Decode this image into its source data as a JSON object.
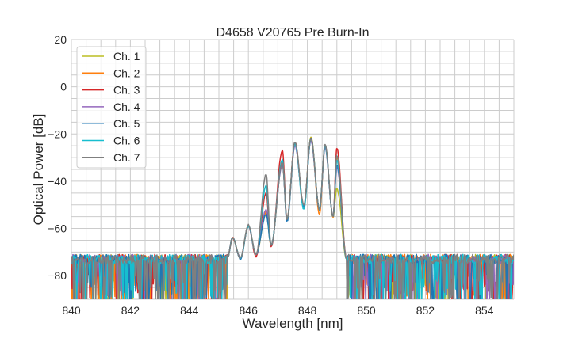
{
  "chart_data": {
    "type": "line",
    "title": "D4658 V20765 Pre Burn-In",
    "xlabel": "Wavelength [nm]",
    "ylabel": "Optical Power [dB]",
    "xlim": [
      840,
      855
    ],
    "ylim": [
      -90,
      20
    ],
    "xticks": [
      840,
      842,
      844,
      846,
      848,
      850,
      852,
      854
    ],
    "yticks": [
      -80,
      -60,
      -40,
      -20,
      0,
      20
    ],
    "grid": true,
    "legend_position": "top-left",
    "noise_floor_db": -73,
    "noise_regions_nm": [
      [
        840,
        845.3
      ],
      [
        849.33,
        855
      ]
    ],
    "series": [
      {
        "name": "Ch. 1",
        "color": "#bcbd22",
        "points": [
          [
            845.3,
            -72
          ],
          [
            845.46,
            -64
          ],
          [
            845.73,
            -72.5
          ],
          [
            846.0,
            -59
          ],
          [
            846.26,
            -71
          ],
          [
            846.6,
            -54
          ],
          [
            846.77,
            -67
          ],
          [
            847.15,
            -33
          ],
          [
            847.31,
            -56
          ],
          [
            847.58,
            -24
          ],
          [
            847.88,
            -51
          ],
          [
            848.12,
            -21.5
          ],
          [
            848.41,
            -52
          ],
          [
            848.6,
            -25
          ],
          [
            848.87,
            -55
          ],
          [
            849.0,
            -43
          ],
          [
            849.33,
            -73
          ]
        ]
      },
      {
        "name": "Ch. 2",
        "color": "#ff7f0e",
        "points": [
          [
            845.3,
            -72
          ],
          [
            845.46,
            -64
          ],
          [
            845.73,
            -72.5
          ],
          [
            846.0,
            -59
          ],
          [
            846.26,
            -71
          ],
          [
            846.6,
            -53
          ],
          [
            846.77,
            -67
          ],
          [
            847.15,
            -32
          ],
          [
            847.31,
            -56
          ],
          [
            847.58,
            -23.5
          ],
          [
            847.88,
            -51
          ],
          [
            848.12,
            -22
          ],
          [
            848.41,
            -54
          ],
          [
            848.6,
            -25
          ],
          [
            848.87,
            -55
          ],
          [
            849.0,
            -30
          ],
          [
            849.33,
            -73
          ]
        ]
      },
      {
        "name": "Ch. 3",
        "color": "#d62728",
        "points": [
          [
            845.3,
            -72
          ],
          [
            845.46,
            -64
          ],
          [
            845.73,
            -72.5
          ],
          [
            846.0,
            -59
          ],
          [
            846.26,
            -72
          ],
          [
            846.6,
            -45
          ],
          [
            846.77,
            -68
          ],
          [
            847.15,
            -27
          ],
          [
            847.31,
            -56
          ],
          [
            847.58,
            -23.5
          ],
          [
            847.88,
            -51
          ],
          [
            848.12,
            -22
          ],
          [
            848.41,
            -52
          ],
          [
            848.6,
            -25
          ],
          [
            848.87,
            -55
          ],
          [
            849.0,
            -26
          ],
          [
            849.33,
            -73
          ]
        ]
      },
      {
        "name": "Ch. 4",
        "color": "#9467bd",
        "points": [
          [
            845.3,
            -72
          ],
          [
            845.46,
            -64
          ],
          [
            845.73,
            -72.5
          ],
          [
            846.0,
            -59
          ],
          [
            846.26,
            -71
          ],
          [
            846.6,
            -52
          ],
          [
            846.77,
            -67
          ],
          [
            847.15,
            -33
          ],
          [
            847.31,
            -56
          ],
          [
            847.58,
            -25
          ],
          [
            847.88,
            -51
          ],
          [
            848.12,
            -23
          ],
          [
            848.41,
            -52
          ],
          [
            848.6,
            -26
          ],
          [
            848.87,
            -55
          ],
          [
            849.0,
            -34
          ],
          [
            849.33,
            -73
          ]
        ]
      },
      {
        "name": "Ch. 5",
        "color": "#1f77b4",
        "points": [
          [
            845.3,
            -72
          ],
          [
            845.46,
            -64
          ],
          [
            845.73,
            -73
          ],
          [
            846.0,
            -59
          ],
          [
            846.26,
            -71
          ],
          [
            846.6,
            -54
          ],
          [
            846.77,
            -67
          ],
          [
            847.15,
            -32
          ],
          [
            847.31,
            -57
          ],
          [
            847.58,
            -24
          ],
          [
            847.88,
            -51
          ],
          [
            848.12,
            -22
          ],
          [
            848.41,
            -52
          ],
          [
            848.6,
            -25
          ],
          [
            848.87,
            -55
          ],
          [
            849.0,
            -33
          ],
          [
            849.33,
            -73
          ]
        ]
      },
      {
        "name": "Ch. 6",
        "color": "#17becf",
        "points": [
          [
            845.3,
            -72
          ],
          [
            845.46,
            -64
          ],
          [
            845.73,
            -72.5
          ],
          [
            846.0,
            -59
          ],
          [
            846.26,
            -71
          ],
          [
            846.6,
            -42
          ],
          [
            846.77,
            -67
          ],
          [
            847.15,
            -31
          ],
          [
            847.31,
            -56
          ],
          [
            847.58,
            -24
          ],
          [
            847.88,
            -52
          ],
          [
            848.12,
            -22
          ],
          [
            848.41,
            -52
          ],
          [
            848.6,
            -25
          ],
          [
            848.87,
            -55
          ],
          [
            849.0,
            -31
          ],
          [
            849.33,
            -73
          ]
        ]
      },
      {
        "name": "Ch. 7",
        "color": "#7f7f7f",
        "points": [
          [
            845.3,
            -72
          ],
          [
            845.46,
            -64
          ],
          [
            845.73,
            -72.5
          ],
          [
            846.0,
            -58.5
          ],
          [
            846.26,
            -71
          ],
          [
            846.6,
            -37
          ],
          [
            846.77,
            -67
          ],
          [
            847.15,
            -32
          ],
          [
            847.31,
            -56
          ],
          [
            847.58,
            -23.5
          ],
          [
            847.88,
            -50
          ],
          [
            848.12,
            -22
          ],
          [
            848.41,
            -52
          ],
          [
            848.6,
            -24.5
          ],
          [
            848.87,
            -55
          ],
          [
            849.0,
            -29
          ],
          [
            849.33,
            -73
          ]
        ]
      }
    ]
  }
}
